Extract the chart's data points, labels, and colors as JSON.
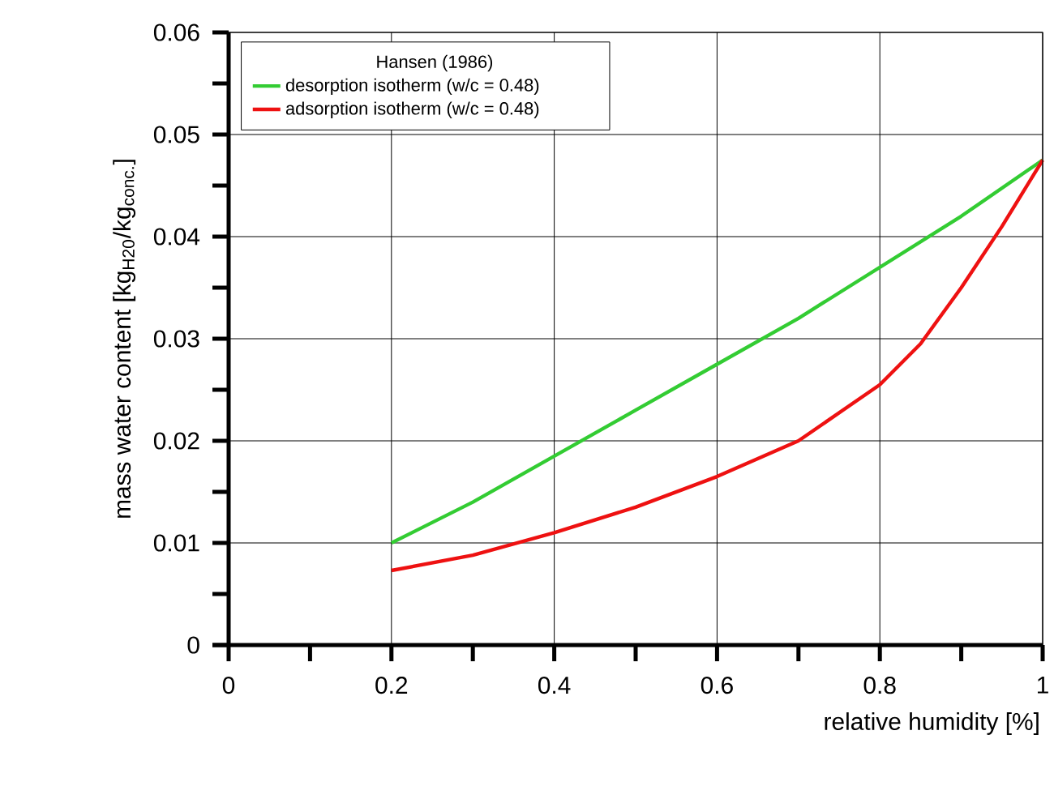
{
  "chart_data": {
    "type": "line",
    "xlabel": "relative humidity [%]",
    "ylabel": "mass water content [kg$_{H20}$/kg$_{conc.}$]",
    "legend_title": "Hansen (1986)",
    "xlim": [
      0,
      1
    ],
    "ylim": [
      0,
      0.06
    ],
    "xticks": [
      0,
      0.2,
      0.4,
      0.6,
      0.8,
      1
    ],
    "yticks": [
      0,
      0.01,
      0.02,
      0.03,
      0.04,
      0.05,
      0.06
    ],
    "grid": true,
    "legend": "top left",
    "series": [
      {
        "name": "desorption isotherm (w/c = 0.48)",
        "color": "#33cc33",
        "x": [
          0.2,
          0.3,
          0.4,
          0.5,
          0.6,
          0.7,
          0.8,
          0.9,
          1.0
        ],
        "values": [
          0.01,
          0.014,
          0.0185,
          0.023,
          0.0275,
          0.032,
          0.037,
          0.042,
          0.0475
        ]
      },
      {
        "name": "adsorption isotherm (w/c = 0.48)",
        "color": "#ee1111",
        "x": [
          0.2,
          0.3,
          0.4,
          0.5,
          0.6,
          0.7,
          0.8,
          0.85,
          0.9,
          0.95,
          1.0
        ],
        "values": [
          0.0073,
          0.0088,
          0.011,
          0.0135,
          0.0165,
          0.02,
          0.0255,
          0.0295,
          0.035,
          0.041,
          0.0475
        ]
      }
    ]
  }
}
